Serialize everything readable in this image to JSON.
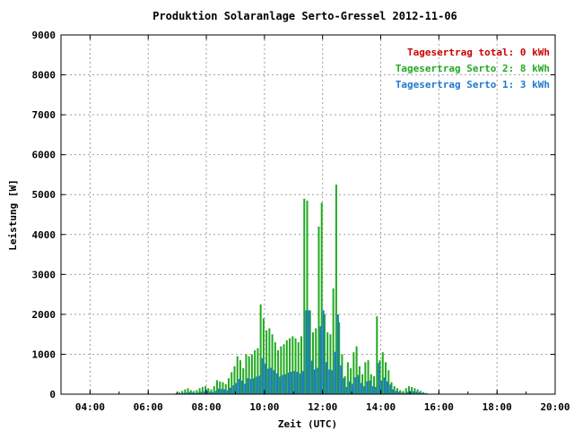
{
  "chart_data": {
    "type": "bar",
    "title": "Produktion Solaranlage Serto-Gressel 2012-11-06",
    "xlabel": "Zeit (UTC)",
    "ylabel": "Leistung [W]",
    "xlim": [
      3.0,
      20.0
    ],
    "ylim": [
      0,
      9000
    ],
    "x_ticks": [
      "04:00",
      "06:00",
      "08:00",
      "10:00",
      "12:00",
      "14:00",
      "16:00",
      "18:00",
      "20:00"
    ],
    "y_ticks": [
      "0",
      "1000",
      "2000",
      "3000",
      "4000",
      "5000",
      "6000",
      "7000",
      "8000",
      "9000"
    ],
    "grid": true,
    "legend_position": "top-right",
    "legend": [
      {
        "label": "Tagesertrag total: 0 kWh",
        "color": "#cc0000"
      },
      {
        "label": "Tagesertrag Serto 2: 8 kWh",
        "color": "#22aa22"
      },
      {
        "label": "Tagesertrag Serto 1: 3 kWh",
        "color": "#1e78d2"
      }
    ],
    "x": [
      7.0,
      7.1,
      7.2,
      7.3,
      7.4,
      7.5,
      7.6,
      7.7,
      7.8,
      7.9,
      8.0,
      8.1,
      8.2,
      8.3,
      8.4,
      8.5,
      8.6,
      8.7,
      8.8,
      8.9,
      9.0,
      9.1,
      9.2,
      9.3,
      9.4,
      9.5,
      9.6,
      9.7,
      9.8,
      9.9,
      10.0,
      10.1,
      10.2,
      10.3,
      10.4,
      10.5,
      10.6,
      10.7,
      10.8,
      10.9,
      11.0,
      11.1,
      11.2,
      11.3,
      11.4,
      11.5,
      11.6,
      11.7,
      11.8,
      11.9,
      12.0,
      12.1,
      12.2,
      12.3,
      12.4,
      12.5,
      12.6,
      12.7,
      12.8,
      12.9,
      13.0,
      13.1,
      13.2,
      13.3,
      13.4,
      13.5,
      13.6,
      13.7,
      13.8,
      13.9,
      14.0,
      14.1,
      14.2,
      14.3,
      14.4,
      14.5,
      14.6,
      14.7,
      14.8,
      14.9,
      15.0,
      15.1,
      15.2,
      15.3,
      15.4,
      15.5,
      15.6
    ],
    "series": [
      {
        "name": "Tagesertrag Serto 2: 8 kWh",
        "color": "#22aa22",
        "values": [
          30,
          50,
          80,
          120,
          150,
          100,
          80,
          100,
          150,
          180,
          200,
          150,
          120,
          200,
          350,
          320,
          300,
          250,
          400,
          550,
          700,
          950,
          850,
          650,
          1000,
          950,
          1000,
          1100,
          1150,
          2250,
          1900,
          1600,
          1650,
          1500,
          1300,
          1100,
          1200,
          1250,
          1350,
          1400,
          1450,
          1400,
          1300,
          1450,
          4900,
          4850,
          2100,
          1550,
          1650,
          4200,
          4800,
          2000,
          1550,
          1500,
          2650,
          5250,
          1800,
          1000,
          450,
          800,
          650,
          1050,
          1200,
          700,
          500,
          800,
          850,
          500,
          450,
          1950,
          850,
          1050,
          800,
          600,
          300,
          200,
          150,
          100,
          80,
          150,
          200,
          180,
          150,
          120,
          80,
          50,
          30
        ]
      },
      {
        "name": "Tagesertrag Serto 1: 3 kWh",
        "color": "#1e78d2",
        "values": [
          10,
          20,
          30,
          40,
          50,
          40,
          30,
          40,
          60,
          70,
          80,
          60,
          50,
          80,
          140,
          130,
          120,
          100,
          160,
          220,
          280,
          380,
          340,
          260,
          400,
          380,
          400,
          440,
          460,
          900,
          760,
          640,
          660,
          600,
          520,
          440,
          480,
          500,
          540,
          560,
          580,
          560,
          520,
          580,
          2100,
          2100,
          840,
          620,
          660,
          1700,
          2100,
          800,
          620,
          600,
          1060,
          2000,
          720,
          400,
          180,
          320,
          260,
          420,
          480,
          280,
          200,
          320,
          340,
          200,
          180,
          780,
          340,
          420,
          320,
          240,
          120,
          80,
          60,
          40,
          30,
          60,
          80,
          70,
          60,
          50,
          30,
          20,
          10
        ]
      }
    ]
  }
}
